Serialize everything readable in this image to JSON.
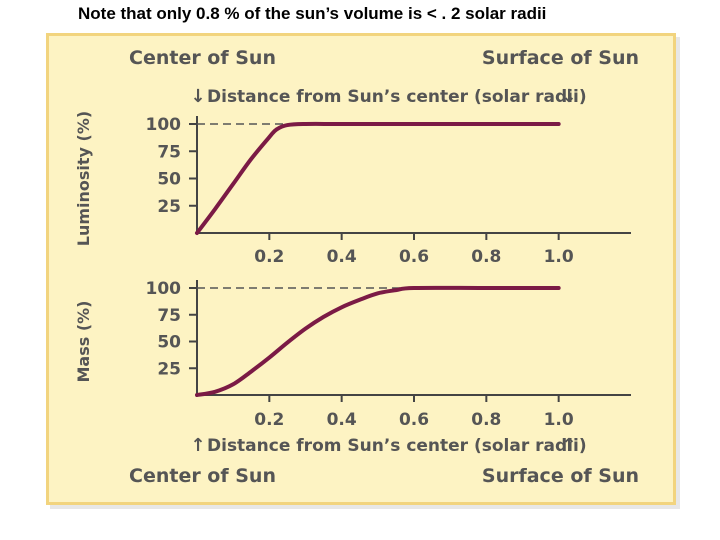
{
  "note": "Note that only 0.8 % of  the sun’s volume is < . 2 solar radii",
  "labels": {
    "center": "Center of Sun",
    "surface": "Surface of Sun",
    "distance": "Distance from Sun’s center (solar radii)",
    "arrow_down": "↓",
    "arrow_up": "↑"
  },
  "colors": {
    "curve": "#7b1a45",
    "panel_bg": "#fdf3c3",
    "panel_border": "#f2d47e",
    "text": "#555555"
  },
  "chart_data": [
    {
      "type": "line",
      "title": "",
      "xlabel": "Distance from Sun’s center (solar radii)",
      "ylabel": "Luminosity (%)",
      "xlim": [
        0,
        1.2
      ],
      "ylim": [
        0,
        100
      ],
      "x_ticks": [
        "0.2",
        "0.4",
        "0.6",
        "0.8",
        "1.0"
      ],
      "x_tick_values": [
        0.2,
        0.4,
        0.6,
        0.8,
        1.0
      ],
      "y_ticks": [
        "100",
        "75",
        "50",
        "25"
      ],
      "y_tick_values": [
        100,
        75,
        50,
        25
      ],
      "reference_line": 100,
      "series": [
        {
          "x": [
            0,
            0.05,
            0.1,
            0.15,
            0.2,
            0.22,
            0.25,
            0.3,
            0.4,
            0.6,
            0.8,
            1.0
          ],
          "y": [
            0,
            22,
            45,
            68,
            88,
            95,
            99,
            100,
            100,
            100,
            100,
            100
          ]
        }
      ]
    },
    {
      "type": "line",
      "title": "",
      "xlabel": "Distance from Sun’s center (solar radii)",
      "ylabel": "Mass (%)",
      "xlim": [
        0,
        1.2
      ],
      "ylim": [
        0,
        100
      ],
      "x_ticks": [
        "0.2",
        "0.4",
        "0.6",
        "0.8",
        "1.0"
      ],
      "x_tick_values": [
        0.2,
        0.4,
        0.6,
        0.8,
        1.0
      ],
      "y_ticks": [
        "100",
        "75",
        "50",
        "25"
      ],
      "y_tick_values": [
        100,
        75,
        50,
        25
      ],
      "reference_line": 100,
      "series": [
        {
          "x": [
            0,
            0.05,
            0.1,
            0.15,
            0.2,
            0.25,
            0.3,
            0.35,
            0.4,
            0.45,
            0.5,
            0.55,
            0.6,
            0.8,
            1.0
          ],
          "y": [
            0,
            3,
            10,
            22,
            35,
            49,
            62,
            73,
            82,
            89,
            95,
            98,
            100,
            100,
            100
          ]
        }
      ]
    }
  ]
}
